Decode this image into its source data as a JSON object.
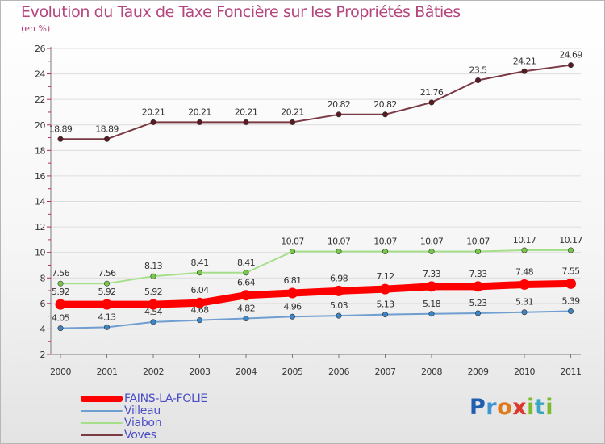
{
  "page": {
    "title": "Evolution du Taux de Taxe Foncière sur les Propriétés Bâties",
    "subtitle": "(en %)",
    "logo": {
      "p": "P",
      "r": "r",
      "o": "o",
      "x": "x",
      "i": "i",
      "t": "t",
      "i2": "i"
    }
  },
  "chart_data": {
    "type": "line",
    "title": "Evolution du Taux de Taxe Foncière sur les Propriétés Bâties",
    "ylabel": "(en %)",
    "xlabel": "",
    "ylim": [
      2,
      26
    ],
    "yticks": [
      2,
      4,
      6,
      8,
      10,
      12,
      14,
      16,
      18,
      20,
      22,
      24,
      26
    ],
    "categories": [
      "2000",
      "2001",
      "2002",
      "2003",
      "2004",
      "2005",
      "2006",
      "2007",
      "2008",
      "2009",
      "2010",
      "2011"
    ],
    "legend": "bottom-left",
    "series": [
      {
        "name": "FAINS-LA-FOLIE",
        "color": "#ff0000",
        "marker": "#ff0000",
        "emphasis": true,
        "values": [
          5.92,
          5.92,
          5.92,
          6.04,
          6.64,
          6.81,
          6.98,
          7.12,
          7.33,
          7.33,
          7.48,
          7.55
        ],
        "labels": [
          "5.92",
          "5.92",
          "5.92",
          "6.04",
          "6.64",
          "6.81",
          "6.98",
          "7.12",
          "7.33",
          "7.33",
          "7.48",
          "7.55"
        ]
      },
      {
        "name": "Villeau",
        "color": "#6f9ed0",
        "marker": "#3c86c8",
        "values": [
          4.05,
          4.13,
          4.54,
          4.68,
          4.82,
          4.96,
          5.03,
          5.13,
          5.18,
          5.23,
          5.31,
          5.39
        ],
        "labels": [
          "4.05",
          "4.13",
          "4.54",
          "4.68",
          "4.82",
          "4.96",
          "5.03",
          "5.13",
          "5.18",
          "5.23",
          "5.31",
          "5.39"
        ]
      },
      {
        "name": "Viabon",
        "color": "#a6df8a",
        "marker": "#78c84a",
        "values": [
          7.56,
          7.56,
          8.13,
          8.41,
          8.41,
          10.07,
          10.07,
          10.07,
          10.07,
          10.07,
          10.17,
          10.17
        ],
        "labels": [
          "7.56",
          "7.56",
          "8.13",
          "8.41",
          "8.41",
          "10.07",
          "10.07",
          "10.07",
          "10.07",
          "10.07",
          "10.17",
          "10.17"
        ]
      },
      {
        "name": "Voves",
        "color": "#7a3a44",
        "marker": "#5a1a24",
        "values": [
          18.89,
          18.89,
          20.21,
          20.21,
          20.21,
          20.21,
          20.82,
          20.82,
          21.76,
          23.5,
          24.21,
          24.69
        ],
        "labels": [
          "18.89",
          "18.89",
          "20.21",
          "20.21",
          "20.21",
          "20.21",
          "20.82",
          "20.82",
          "21.76",
          "23.5",
          "24.21",
          "24.69"
        ]
      }
    ]
  }
}
